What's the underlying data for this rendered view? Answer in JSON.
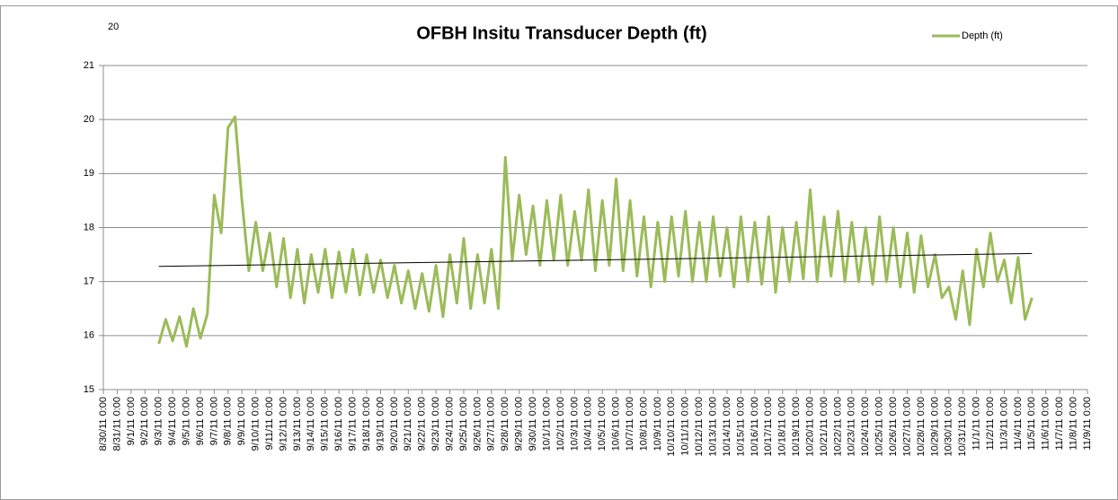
{
  "chart_data": {
    "type": "line",
    "title": "OFBH Insitu Transducer Depth (ft)",
    "annotations": [
      "20"
    ],
    "xlim": [
      "8/30/11 0:00",
      "11/9/11 0:00"
    ],
    "xticks": [
      "8/30/11 0:00",
      "8/31/11 0:00",
      "9/1/11 0:00",
      "9/2/11 0:00",
      "9/3/11 0:00",
      "9/4/11 0:00",
      "9/5/11 0:00",
      "9/6/11 0:00",
      "9/7/11 0:00",
      "9/8/11 0:00",
      "9/9/11 0:00",
      "9/10/11 0:00",
      "9/11/11 0:00",
      "9/12/11 0:00",
      "9/13/11 0:00",
      "9/14/11 0:00",
      "9/15/11 0:00",
      "9/16/11 0:00",
      "9/17/11 0:00",
      "9/18/11 0:00",
      "9/19/11 0:00",
      "9/20/11 0:00",
      "9/21/11 0:00",
      "9/22/11 0:00",
      "9/23/11 0:00",
      "9/24/11 0:00",
      "9/25/11 0:00",
      "9/26/11 0:00",
      "9/27/11 0:00",
      "9/28/11 0:00",
      "9/29/11 0:00",
      "9/30/11 0:00",
      "10/1/11 0:00",
      "10/2/11 0:00",
      "10/3/11 0:00",
      "10/4/11 0:00",
      "10/5/11 0:00",
      "10/6/11 0:00",
      "10/7/11 0:00",
      "10/8/11 0:00",
      "10/9/11 0:00",
      "10/10/11 0:00",
      "10/11/11 0:00",
      "10/12/11 0:00",
      "10/13/11 0:00",
      "10/14/11 0:00",
      "10/15/11 0:00",
      "10/16/11 0:00",
      "10/17/11 0:00",
      "10/18/11 0:00",
      "10/19/11 0:00",
      "10/20/11 0:00",
      "10/21/11 0:00",
      "10/22/11 0:00",
      "10/23/11 0:00",
      "10/24/11 0:00",
      "10/25/11 0:00",
      "10/26/11 0:00",
      "10/27/11 0:00",
      "10/28/11 0:00",
      "10/29/11 0:00",
      "10/30/11 0:00",
      "10/31/11 0:00",
      "11/1/11 0:00",
      "11/2/11 0:00",
      "11/3/11 0:00",
      "11/4/11 0:00",
      "11/5/11 0:00",
      "11/6/11 0:00",
      "11/7/11 0:00",
      "11/8/11 0:00",
      "11/9/11 0:00"
    ],
    "ylim": [
      15,
      21
    ],
    "yticks": [
      15,
      16,
      17,
      18,
      19,
      20,
      21
    ],
    "grid": true,
    "legend": "top-right",
    "series": [
      {
        "name": "Depth (ft)",
        "color": "#9bbb59",
        "x": [
          "9/3/11 0:00",
          "9/3/11 12:00",
          "9/4/11 0:00",
          "9/4/11 12:00",
          "9/5/11 0:00",
          "9/5/11 12:00",
          "9/6/11 0:00",
          "9/6/11 12:00",
          "9/7/11 0:00",
          "9/7/11 12:00",
          "9/8/11 0:00",
          "9/8/11 12:00",
          "9/9/11 0:00",
          "9/9/11 12:00",
          "9/10/11 0:00",
          "9/10/11 12:00",
          "9/11/11 0:00",
          "9/11/11 12:00",
          "9/12/11 0:00",
          "9/12/11 12:00",
          "9/13/11 0:00",
          "9/13/11 12:00",
          "9/14/11 0:00",
          "9/14/11 12:00",
          "9/15/11 0:00",
          "9/15/11 12:00",
          "9/16/11 0:00",
          "9/16/11 12:00",
          "9/17/11 0:00",
          "9/17/11 12:00",
          "9/18/11 0:00",
          "9/18/11 12:00",
          "9/19/11 0:00",
          "9/19/11 12:00",
          "9/20/11 0:00",
          "9/20/11 12:00",
          "9/21/11 0:00",
          "9/21/11 12:00",
          "9/22/11 0:00",
          "9/22/11 12:00",
          "9/23/11 0:00",
          "9/23/11 12:00",
          "9/24/11 0:00",
          "9/24/11 12:00",
          "9/25/11 0:00",
          "9/25/11 12:00",
          "9/26/11 0:00",
          "9/26/11 12:00",
          "9/27/11 0:00",
          "9/27/11 12:00",
          "9/28/11 0:00",
          "9/28/11 12:00",
          "9/29/11 0:00",
          "9/29/11 12:00",
          "9/30/11 0:00",
          "9/30/11 12:00",
          "10/1/11 0:00",
          "10/1/11 12:00",
          "10/2/11 0:00",
          "10/2/11 12:00",
          "10/3/11 0:00",
          "10/3/11 12:00",
          "10/4/11 0:00",
          "10/4/11 12:00",
          "10/5/11 0:00",
          "10/5/11 12:00",
          "10/6/11 0:00",
          "10/6/11 12:00",
          "10/7/11 0:00",
          "10/7/11 12:00",
          "10/8/11 0:00",
          "10/8/11 12:00",
          "10/9/11 0:00",
          "10/9/11 12:00",
          "10/10/11 0:00",
          "10/10/11 12:00",
          "10/11/11 0:00",
          "10/11/11 12:00",
          "10/12/11 0:00",
          "10/12/11 12:00",
          "10/13/11 0:00",
          "10/13/11 12:00",
          "10/14/11 0:00",
          "10/14/11 12:00",
          "10/15/11 0:00",
          "10/15/11 12:00",
          "10/16/11 0:00",
          "10/16/11 12:00",
          "10/17/11 0:00",
          "10/17/11 12:00",
          "10/18/11 0:00",
          "10/18/11 12:00",
          "10/19/11 0:00",
          "10/19/11 12:00",
          "10/20/11 0:00",
          "10/20/11 12:00",
          "10/21/11 0:00",
          "10/21/11 12:00",
          "10/22/11 0:00",
          "10/22/11 12:00",
          "10/23/11 0:00",
          "10/23/11 12:00",
          "10/24/11 0:00",
          "10/24/11 12:00",
          "10/25/11 0:00",
          "10/25/11 12:00",
          "10/26/11 0:00",
          "10/26/11 12:00",
          "10/27/11 0:00",
          "10/27/11 12:00",
          "10/28/11 0:00",
          "10/28/11 12:00",
          "10/29/11 0:00",
          "10/29/11 12:00",
          "10/30/11 0:00",
          "10/30/11 12:00",
          "10/31/11 0:00",
          "10/31/11 12:00",
          "11/1/11 0:00",
          "11/1/11 12:00",
          "11/2/11 0:00",
          "11/2/11 12:00",
          "11/3/11 0:00",
          "11/3/11 12:00",
          "11/4/11 0:00",
          "11/4/11 12:00",
          "11/5/11 0:00"
        ],
        "values": [
          15.85,
          16.3,
          15.9,
          16.35,
          15.8,
          16.5,
          15.95,
          16.4,
          18.6,
          17.9,
          19.85,
          20.05,
          18.5,
          17.2,
          18.1,
          17.2,
          17.9,
          16.9,
          17.8,
          16.7,
          17.6,
          16.6,
          17.5,
          16.8,
          17.6,
          16.7,
          17.55,
          16.8,
          17.6,
          16.75,
          17.5,
          16.8,
          17.4,
          16.7,
          17.3,
          16.6,
          17.2,
          16.5,
          17.15,
          16.45,
          17.3,
          16.35,
          17.5,
          16.6,
          17.8,
          16.5,
          17.5,
          16.6,
          17.6,
          16.5,
          19.3,
          17.4,
          18.6,
          17.5,
          18.4,
          17.3,
          18.5,
          17.4,
          18.6,
          17.3,
          18.3,
          17.4,
          18.7,
          17.2,
          18.5,
          17.3,
          18.9,
          17.2,
          18.5,
          17.1,
          18.2,
          16.9,
          18.1,
          17.0,
          18.2,
          17.1,
          18.3,
          17.0,
          18.1,
          17.0,
          18.2,
          17.1,
          18.0,
          16.9,
          18.2,
          17.0,
          18.1,
          16.95,
          18.2,
          16.8,
          18.0,
          17.0,
          18.1,
          17.05,
          18.7,
          17.0,
          18.2,
          17.1,
          18.3,
          17.0,
          18.1,
          17.0,
          18.0,
          16.95,
          18.2,
          17.0,
          18.0,
          16.9,
          17.9,
          16.8,
          17.85,
          16.9,
          17.5,
          16.7,
          16.9,
          16.3,
          17.2,
          16.2,
          17.6,
          16.9,
          17.9,
          17.0,
          17.4,
          16.6,
          17.45,
          16.3,
          16.7
        ]
      }
    ],
    "trendline": {
      "x": [
        "9/3/11 0:00",
        "11/5/11 0:00"
      ],
      "values": [
        17.28,
        17.52
      ],
      "color": "#000000"
    }
  }
}
